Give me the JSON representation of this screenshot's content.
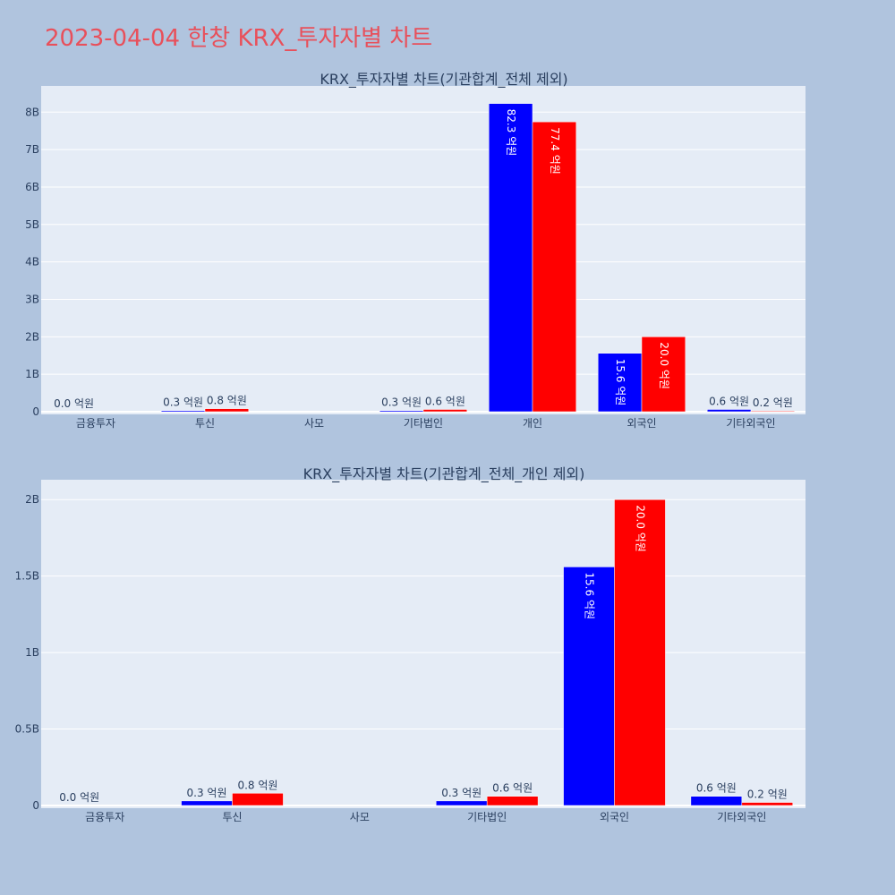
{
  "page": {
    "title": "2023-04-04 한창 KRX_투자자별 차트",
    "title_color": "#e8505b",
    "background": "#b0c4de",
    "plot_background": "#e5ecf6"
  },
  "chart_data": [
    {
      "type": "bar",
      "title": "KRX_투자자별 차트(기관합계_전체 제외)",
      "xlabel": "",
      "ylabel": "",
      "categories": [
        "금융투자",
        "투신",
        "사모",
        "기타법인",
        "개인",
        "외국인",
        "기타외국인"
      ],
      "series": [
        {
          "color": "#0000ff",
          "values": [
            0.0,
            30000000,
            null,
            30000000,
            8230000000,
            1560000000,
            60000000
          ],
          "labels": [
            "0.0 억원",
            "0.3 억원",
            "",
            "0.3 억원",
            "82.3 억원",
            "15.6 억원",
            "0.6 억원"
          ]
        },
        {
          "color": "#ff0000",
          "values": [
            null,
            80000000,
            null,
            60000000,
            7740000000,
            2000000000,
            20000000
          ],
          "labels": [
            "",
            "0.8 억원",
            "",
            "0.6 억원",
            "77.4 억원",
            "20.0 억원",
            "0.2 억원"
          ]
        }
      ],
      "ylim": [
        0,
        8700000000
      ],
      "yticks": [
        0,
        1000000000,
        2000000000,
        3000000000,
        4000000000,
        5000000000,
        6000000000,
        7000000000,
        8000000000
      ],
      "ytick_labels": [
        "0",
        "1B",
        "2B",
        "3B",
        "4B",
        "5B",
        "6B",
        "7B",
        "8B"
      ],
      "grid": true,
      "legend": "none"
    },
    {
      "type": "bar",
      "title": "KRX_투자자별 차트(기관합계_전체_개인 제외)",
      "xlabel": "",
      "ylabel": "",
      "categories": [
        "금융투자",
        "투신",
        "사모",
        "기타법인",
        "외국인",
        "기타외국인"
      ],
      "series": [
        {
          "color": "#0000ff",
          "values": [
            0.0,
            30000000,
            null,
            30000000,
            1560000000,
            60000000
          ],
          "labels": [
            "0.0 억원",
            "0.3 억원",
            "",
            "0.3 억원",
            "15.6 억원",
            "0.6 억원"
          ]
        },
        {
          "color": "#ff0000",
          "values": [
            null,
            80000000,
            null,
            60000000,
            2000000000,
            20000000
          ],
          "labels": [
            "",
            "0.8 억원",
            "",
            "0.6 억원",
            "20.0 억원",
            "0.2 억원"
          ]
        }
      ],
      "ylim": [
        0,
        2130000000
      ],
      "yticks": [
        0,
        500000000,
        1000000000,
        1500000000,
        2000000000
      ],
      "ytick_labels": [
        "0",
        "0.5B",
        "1B",
        "1.5B",
        "2B"
      ],
      "grid": true,
      "legend": "none"
    }
  ]
}
